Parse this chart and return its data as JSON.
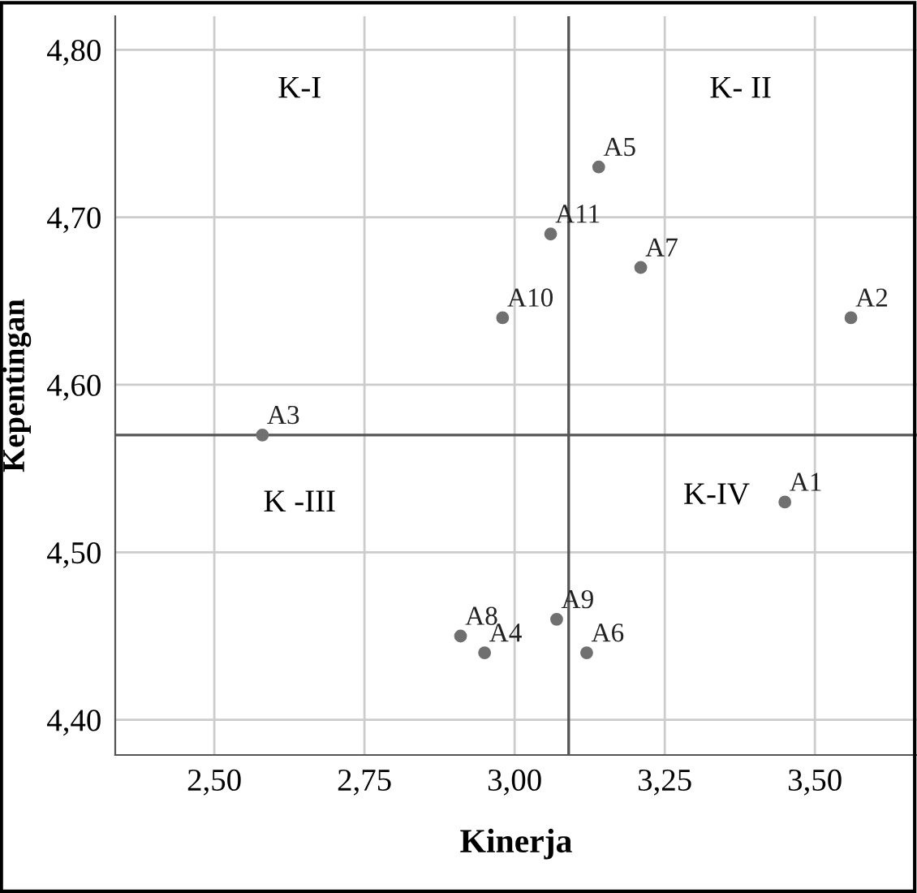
{
  "chart_data": {
    "type": "scatter",
    "xlabel": "Kinerja",
    "ylabel": "Kepentingan",
    "x": [
      3.45,
      3.56,
      2.58,
      2.95,
      3.14,
      3.12,
      3.21,
      2.91,
      3.07,
      2.98,
      3.06
    ],
    "values": [
      4.53,
      4.64,
      4.57,
      4.44,
      4.73,
      4.44,
      4.67,
      4.45,
      4.46,
      4.64,
      4.69
    ],
    "color": "#707070",
    "marker": "circle",
    "xlim": [
      2.335,
      3.67
    ],
    "ylim": [
      4.379,
      4.82
    ],
    "xticks": [
      {
        "value": 2.5,
        "label": "2,50"
      },
      {
        "value": 2.75,
        "label": "2,75"
      },
      {
        "value": 3.0,
        "label": "3,00"
      },
      {
        "value": 3.25,
        "label": "3,25"
      },
      {
        "value": 3.5,
        "label": "3,50"
      }
    ],
    "yticks": [
      {
        "value": 4.4,
        "label": "4,40"
      },
      {
        "value": 4.5,
        "label": "4,50"
      },
      {
        "value": 4.6,
        "label": "4,60"
      },
      {
        "value": 4.7,
        "label": "4,70"
      },
      {
        "value": 4.8,
        "label": "4,80"
      }
    ],
    "grid": true,
    "ref_lines": [
      {
        "axis": "x",
        "value": 3.09,
        "color": "#555555"
      },
      {
        "axis": "y",
        "value": 4.57,
        "color": "#555555"
      }
    ],
    "annotations": [
      {
        "text": "A1",
        "x": 3.45,
        "y": 4.53
      },
      {
        "text": "A2",
        "x": 3.56,
        "y": 4.64
      },
      {
        "text": "A3",
        "x": 2.58,
        "y": 4.57
      },
      {
        "text": "A4",
        "x": 2.95,
        "y": 4.44
      },
      {
        "text": "A5",
        "x": 3.14,
        "y": 4.73
      },
      {
        "text": "A6",
        "x": 3.12,
        "y": 4.44
      },
      {
        "text": "A7",
        "x": 3.21,
        "y": 4.67
      },
      {
        "text": "A8",
        "x": 2.91,
        "y": 4.45
      },
      {
        "text": "A9",
        "x": 3.07,
        "y": 4.46
      },
      {
        "text": "A10",
        "x": 2.98,
        "y": 4.64
      },
      {
        "text": "A11",
        "x": 3.06,
        "y": 4.69
      },
      "K-I",
      "K- II",
      "K -III",
      "K-IV"
    ]
  }
}
